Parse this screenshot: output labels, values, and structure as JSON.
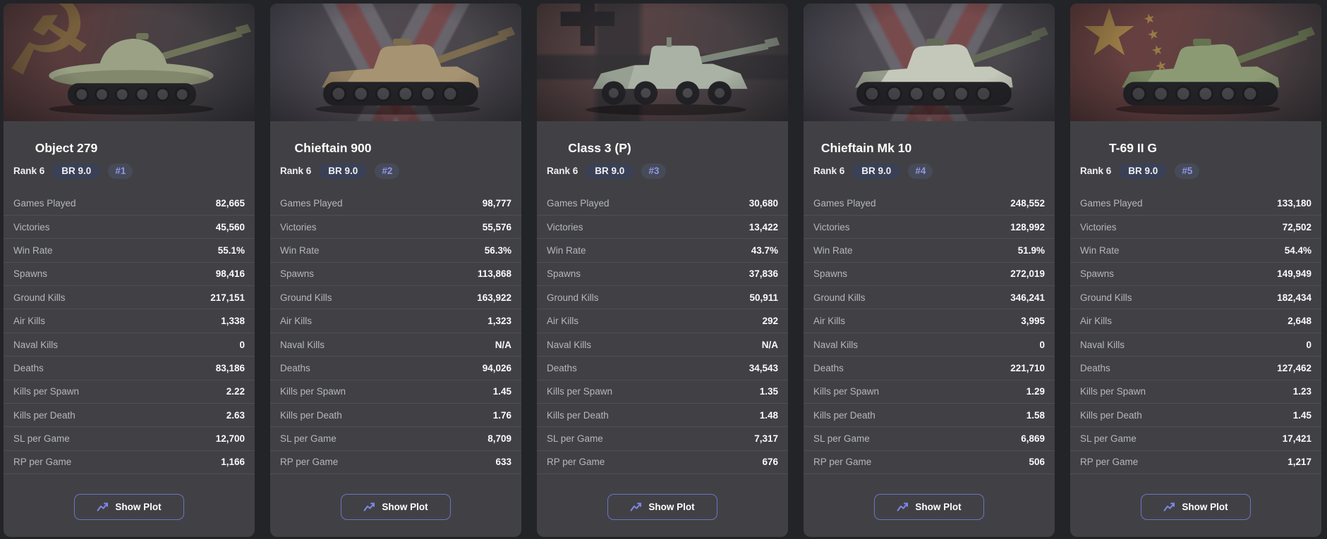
{
  "colors": {
    "accent": "#7d87e8",
    "page_bg": "#232428",
    "card_bg": "#414145",
    "br_badge_bg": "#3a4156",
    "pos_badge_bg": "#474a57",
    "pos_badge_text": "#8e97e9"
  },
  "button": {
    "show_plot_label": "Show Plot"
  },
  "stat_labels": [
    "Games Played",
    "Victories",
    "Win Rate",
    "Spawns",
    "Ground Kills",
    "Air Kills",
    "Naval Kills",
    "Deaths",
    "Kills per Spawn",
    "Kills per Death",
    "SL per Game",
    "RP per Game"
  ],
  "cards": [
    {
      "title": "Object 279",
      "rank_label": "Rank 6",
      "br_label": "BR 9.0",
      "position_label": "#1",
      "flag_icon": "ussr-flag",
      "emblem_icon": "☭",
      "emblem_small_icons": "",
      "silhouette": "dome-tank",
      "vehicle_colors": {
        "body": "#9aa184",
        "shade": "#6f7459"
      },
      "values": [
        "82,665",
        "45,560",
        "55.1%",
        "98,416",
        "217,151",
        "1,338",
        "0",
        "83,186",
        "2.22",
        "2.63",
        "12,700",
        "1,166"
      ]
    },
    {
      "title": "Chieftain 900",
      "rank_label": "Rank 6",
      "br_label": "BR 9.0",
      "position_label": "#2",
      "flag_icon": "uk-flag",
      "emblem_icon": "",
      "emblem_small_icons": "",
      "silhouette": "tracked-tank",
      "vehicle_colors": {
        "body": "#a69372",
        "shade": "#7c6c50"
      },
      "values": [
        "98,777",
        "55,576",
        "56.3%",
        "113,868",
        "163,922",
        "1,323",
        "N/A",
        "94,026",
        "1.45",
        "1.76",
        "8,709",
        "633"
      ]
    },
    {
      "title": "Class 3 (P)",
      "rank_label": "Rank 6",
      "br_label": "BR 9.0",
      "position_label": "#3",
      "flag_icon": "germany-flag",
      "emblem_icon": "✚",
      "emblem_small_icons": "",
      "silhouette": "wheeled-vehicle",
      "vehicle_colors": {
        "body": "#aab2a5",
        "shade": "#7e877b"
      },
      "values": [
        "30,680",
        "13,422",
        "43.7%",
        "37,836",
        "50,911",
        "292",
        "N/A",
        "34,543",
        "1.35",
        "1.48",
        "7,317",
        "676"
      ]
    },
    {
      "title": "Chieftain Mk 10",
      "rank_label": "Rank 6",
      "br_label": "BR 9.0",
      "position_label": "#4",
      "flag_icon": "uk-flag",
      "emblem_icon": "",
      "emblem_small_icons": "",
      "silhouette": "tracked-tank",
      "vehicle_colors": {
        "body": "#c4c8ba",
        "shade": "#636b58"
      },
      "values": [
        "248,552",
        "128,992",
        "51.9%",
        "272,019",
        "346,241",
        "3,995",
        "0",
        "221,710",
        "1.29",
        "1.58",
        "6,869",
        "506"
      ]
    },
    {
      "title": "T-69 II G",
      "rank_label": "Rank 6",
      "br_label": "BR 9.0",
      "position_label": "#5",
      "flag_icon": "china-flag",
      "emblem_icon": "★",
      "emblem_small_icons": "★★★★",
      "silhouette": "tracked-tank",
      "vehicle_colors": {
        "body": "#8c9a74",
        "shade": "#667350"
      },
      "values": [
        "133,180",
        "72,502",
        "54.4%",
        "149,949",
        "182,434",
        "2,648",
        "0",
        "127,462",
        "1.23",
        "1.45",
        "17,421",
        "1,217"
      ]
    }
  ]
}
